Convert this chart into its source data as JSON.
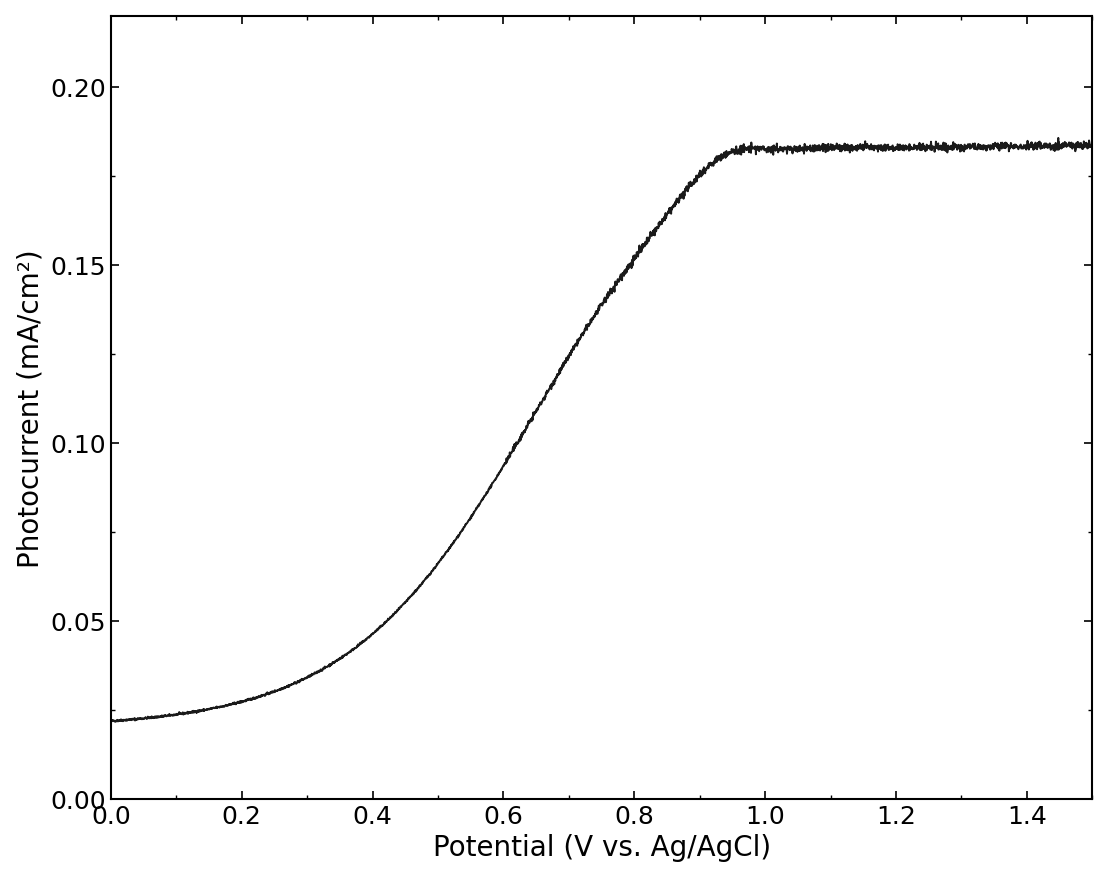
{
  "xlabel": "Potential (V vs. Ag/AgCl)",
  "ylabel": "Photocurrent (mA/cm²)",
  "xlim": [
    0.0,
    1.5
  ],
  "ylim": [
    0.0,
    0.22
  ],
  "xticks": [
    0.0,
    0.2,
    0.4,
    0.6,
    0.8,
    1.0,
    1.2,
    1.4
  ],
  "yticks": [
    0.0,
    0.05,
    0.1,
    0.15,
    0.2
  ],
  "line_color": "#1a1a1a",
  "line_width": 1.4,
  "background_color": "#ffffff",
  "tick_fontsize": 18,
  "label_fontsize": 20
}
